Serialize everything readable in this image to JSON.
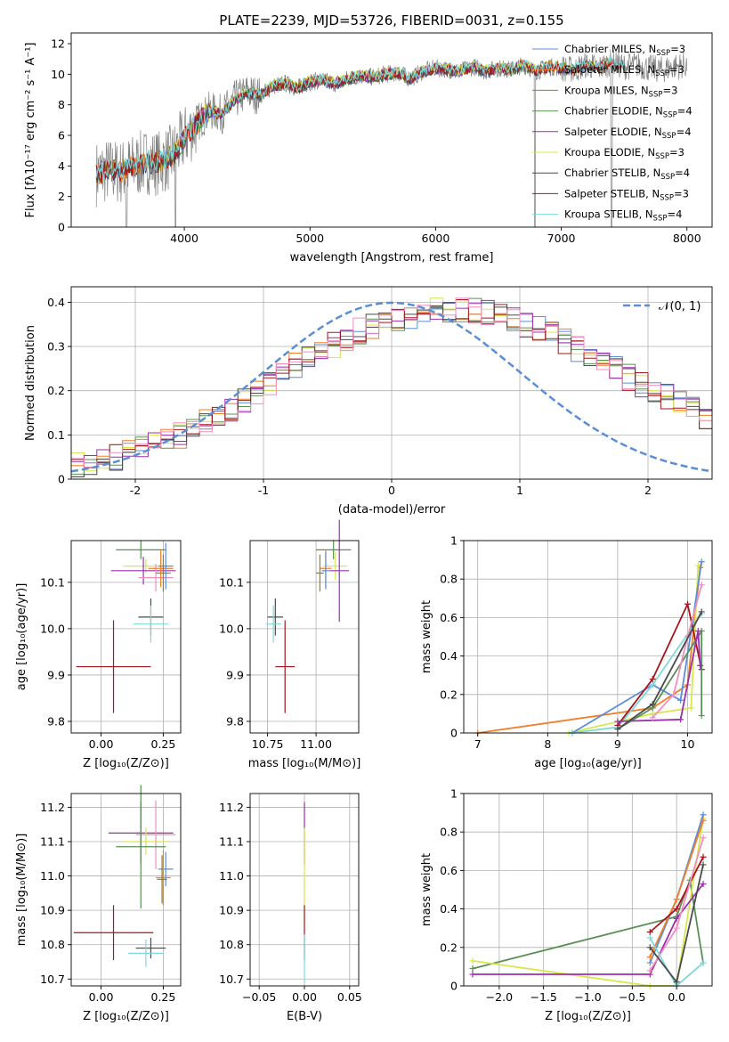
{
  "figure": {
    "title": "PLATE=2239, MJD=53726, FIBERID=0031, z=0.155"
  },
  "colors": {
    "chabrier_miles": "#5b8ed6",
    "salpeter_miles": "#f07f2a",
    "kroupa_miles": "#9a7f18",
    "chabrier_elodie": "#5a8f55",
    "salpeter_elodie": "#9b2fae",
    "kroupa_elodie": "#d6e84a",
    "chabrier_stelib": "#4a4a4a",
    "salpeter_stelib": "#a6161d",
    "kroupa_stelib": "#7fd8d8",
    "observed": "#808080",
    "pink": "#f08fbf",
    "normal_curve": "#5b8ed6"
  },
  "chart_data": [
    {
      "id": "spectrum",
      "type": "line",
      "title": "PLATE=2239, MJD=53726, FIBERID=0031, z=0.155",
      "xlabel": "wavelength [Angstrom, rest frame]",
      "ylabel": "Flux [fλ10⁻¹⁷ erg cm⁻² s⁻¹ A⁻¹]",
      "xlim": [
        3100,
        8200
      ],
      "ylim": [
        0,
        12.7
      ],
      "xticks": [
        4000,
        5000,
        6000,
        7000,
        8000
      ],
      "yticks": [
        0,
        2,
        4,
        6,
        8,
        10,
        12
      ],
      "grid": false,
      "legend_position": "top-right",
      "legend": [
        {
          "name": "Chabrier MILES, N",
          "sub": "SSP",
          "suffix": "=3",
          "color_key": "chabrier_miles"
        },
        {
          "name": "Salpeter MILES, N",
          "sub": "SSP",
          "suffix": "=3",
          "color_key": "salpeter_miles"
        },
        {
          "name": "Kroupa MILES, N",
          "sub": "SSP",
          "suffix": "=3",
          "color_key": "kroupa_miles"
        },
        {
          "name": "Chabrier ELODIE, N",
          "sub": "SSP",
          "suffix": "=4",
          "color_key": "chabrier_elodie"
        },
        {
          "name": "Salpeter ELODIE, N",
          "sub": "SSP",
          "suffix": "=4",
          "color_key": "salpeter_elodie"
        },
        {
          "name": "Kroupa ELODIE, N",
          "sub": "SSP",
          "suffix": "=3",
          "color_key": "kroupa_elodie"
        },
        {
          "name": "Chabrier STELIB, N",
          "sub": "SSP",
          "suffix": "=4",
          "color_key": "chabrier_stelib"
        },
        {
          "name": "Salpeter STELIB, N",
          "sub": "SSP",
          "suffix": "=3",
          "color_key": "salpeter_stelib"
        },
        {
          "name": "Kroupa STELIB, N",
          "sub": "SSP",
          "suffix": "=4",
          "color_key": "kroupa_stelib"
        }
      ],
      "continuum": {
        "x": [
          3300,
          3400,
          3500,
          3600,
          3700,
          3800,
          3900,
          4000,
          4100,
          4200,
          4300,
          4400,
          4500,
          4600,
          4700,
          4800,
          4900,
          5000,
          5100,
          5200,
          5300,
          5400,
          5500,
          5600,
          5700,
          5800,
          5900,
          6000,
          6100,
          6200,
          6300,
          6400,
          6500,
          6600,
          6700,
          6800,
          6900,
          7000,
          7100,
          7200,
          7300,
          7400,
          7500,
          7600,
          7700,
          7800,
          7900,
          8000
        ],
        "y": [
          3.5,
          3.7,
          3.6,
          4.0,
          4.3,
          4.2,
          4.6,
          5.8,
          6.8,
          7.6,
          7.4,
          8.3,
          8.8,
          8.6,
          9.2,
          9.4,
          9.1,
          9.5,
          9.6,
          9.4,
          9.7,
          9.9,
          9.8,
          10.0,
          10.1,
          9.7,
          10.2,
          10.4,
          10.3,
          10.2,
          10.5,
          10.2,
          10.4,
          10.3,
          10.6,
          10.2,
          10.5,
          10.4,
          10.3,
          10.6,
          10.4,
          10.8,
          10.5,
          10.6,
          10.4,
          10.3,
          10.5,
          10.6
        ]
      }
    },
    {
      "id": "residual_hist",
      "type": "histogram",
      "xlabel": "(data-model)/error",
      "ylabel": "Normed distribution",
      "xlim": [
        -2.5,
        2.5
      ],
      "ylim": [
        0,
        0.435
      ],
      "xticks": [
        -2,
        -1,
        0,
        1,
        2
      ],
      "yticks": [
        0.0,
        0.1,
        0.2,
        0.3,
        0.4
      ],
      "grid": true,
      "legend_position": "top-right",
      "legend": [
        {
          "name": "𝒩(0, 1)",
          "style": "dashed",
          "color_key": "normal_curve"
        }
      ],
      "bin_width": 0.1,
      "base_density": [
        0.035,
        0.04,
        0.045,
        0.05,
        0.06,
        0.07,
        0.08,
        0.09,
        0.1,
        0.115,
        0.13,
        0.145,
        0.16,
        0.18,
        0.2,
        0.215,
        0.235,
        0.255,
        0.275,
        0.29,
        0.305,
        0.32,
        0.335,
        0.345,
        0.355,
        0.365,
        0.37,
        0.375,
        0.38,
        0.385,
        0.385,
        0.38,
        0.375,
        0.37,
        0.36,
        0.35,
        0.34,
        0.325,
        0.31,
        0.295,
        0.28,
        0.265,
        0.25,
        0.23,
        0.215,
        0.2,
        0.185,
        0.17,
        0.155,
        0.14
      ]
    },
    {
      "id": "z_vs_age",
      "type": "errorbar",
      "xlabel": "Z [log₁₀(Z/Z⊙)]",
      "ylabel": "age  [log₁₀(age/yr)]",
      "xlim": [
        -0.12,
        0.32
      ],
      "ylim": [
        9.775,
        10.19
      ],
      "xticks": [
        0.0,
        0.25
      ],
      "xticklabels": [
        "0.00",
        "0.25"
      ],
      "yticks": [
        9.8,
        9.9,
        10.0,
        10.1
      ],
      "yticklabels": [
        "9.8",
        "9.9",
        "10.0",
        "10.1"
      ],
      "grid": true,
      "points": [
        {
          "color_key": "chabrier_elodie",
          "x": 0.16,
          "xerr": 0.1,
          "y": 10.17,
          "yerr": 0.02
        },
        {
          "color_key": "kroupa_elodie",
          "x": 0.18,
          "xerr": 0.09,
          "y": 10.135,
          "yerr": 0.015
        },
        {
          "color_key": "salpeter_elodie",
          "x": 0.17,
          "xerr": 0.13,
          "y": 10.125,
          "yerr": 0.03
        },
        {
          "color_key": "pink",
          "x": 0.22,
          "xerr": 0.07,
          "y": 10.11,
          "yerr": 0.03
        },
        {
          "color_key": "salpeter_miles",
          "x": 0.24,
          "xerr": 0.05,
          "y": 10.13,
          "yerr": 0.04
        },
        {
          "color_key": "chabrier_miles",
          "x": 0.26,
          "xerr": 0.03,
          "y": 10.135,
          "yerr": 0.05
        },
        {
          "color_key": "kroupa_miles",
          "x": 0.25,
          "xerr": 0.03,
          "y": 10.12,
          "yerr": 0.04
        },
        {
          "color_key": "chabrier_stelib",
          "x": 0.2,
          "xerr": 0.05,
          "y": 10.025,
          "yerr": 0.04
        },
        {
          "color_key": "kroupa_stelib",
          "x": 0.2,
          "xerr": 0.07,
          "y": 10.01,
          "yerr": 0.04
        },
        {
          "color_key": "salpeter_stelib",
          "x": 0.05,
          "xerr": 0.15,
          "y": 9.918,
          "yerr": 0.1
        }
      ]
    },
    {
      "id": "mass_vs_age",
      "type": "errorbar",
      "xlabel": "mass [log₁₀(M/M⊙)]",
      "ylabel": "",
      "xlim": [
        10.66,
        11.22
      ],
      "ylim": [
        9.775,
        10.19
      ],
      "xticks": [
        10.75,
        11.0
      ],
      "xticklabels": [
        "10.75",
        "11.00"
      ],
      "yticks": [
        9.8,
        9.9,
        10.0,
        10.1
      ],
      "yticklabels": [
        "9.8",
        "9.9",
        "10.0",
        "10.1"
      ],
      "grid": true,
      "points": [
        {
          "color_key": "chabrier_elodie",
          "x": 11.09,
          "xerr": 0.09,
          "y": 10.17,
          "yerr": 0.02
        },
        {
          "color_key": "kroupa_elodie",
          "x": 11.1,
          "xerr": 0.06,
          "y": 10.135,
          "yerr": 0.03
        },
        {
          "color_key": "salpeter_elodie",
          "x": 11.12,
          "xerr": 0.05,
          "y": 10.125,
          "yerr": 0.11
        },
        {
          "color_key": "salpeter_miles",
          "x": 11.05,
          "xerr": 0.03,
          "y": 10.13,
          "yerr": 0.04
        },
        {
          "color_key": "chabrier_miles",
          "x": 11.05,
          "xerr": 0.02,
          "y": 10.125,
          "yerr": 0.04
        },
        {
          "color_key": "kroupa_miles",
          "x": 11.02,
          "xerr": 0.02,
          "y": 10.12,
          "yerr": 0.04
        },
        {
          "color_key": "chabrier_stelib",
          "x": 10.79,
          "xerr": 0.04,
          "y": 10.025,
          "yerr": 0.04
        },
        {
          "color_key": "kroupa_stelib",
          "x": 10.78,
          "xerr": 0.04,
          "y": 10.01,
          "yerr": 0.04
        },
        {
          "color_key": "salpeter_stelib",
          "x": 10.84,
          "xerr": 0.05,
          "y": 9.918,
          "yerr": 0.1
        }
      ]
    },
    {
      "id": "age_weights",
      "type": "line",
      "xlabel": "age  [log₁₀(age/yr)]",
      "ylabel": "mass weight",
      "xlim": [
        6.8,
        10.35
      ],
      "ylim": [
        0,
        1.0
      ],
      "xticks": [
        7,
        8,
        9,
        10
      ],
      "xticklabels": [
        "7",
        "8",
        "9",
        "10"
      ],
      "yticks": [
        0.0,
        0.2,
        0.4,
        0.6,
        0.8,
        1.0
      ],
      "grid": true,
      "series": [
        {
          "color_key": "salpeter_miles",
          "x": [
            7.0,
            9.5,
            10.0,
            10.18
          ],
          "y": [
            0.0,
            0.13,
            0.25,
            0.86
          ]
        },
        {
          "color_key": "kroupa_elodie",
          "x": [
            8.3,
            9.5,
            10.05,
            10.15
          ],
          "y": [
            0.0,
            0.1,
            0.13,
            0.87
          ]
        },
        {
          "color_key": "chabrier_miles",
          "x": [
            8.35,
            9.5,
            9.9,
            10.2
          ],
          "y": [
            0.0,
            0.25,
            0.17,
            0.89
          ]
        },
        {
          "color_key": "kroupa_stelib",
          "x": [
            8.35,
            9.0,
            9.5,
            10.2
          ],
          "y": [
            0.0,
            0.03,
            0.25,
            0.62
          ]
        },
        {
          "color_key": "salpeter_stelib",
          "x": [
            9.0,
            9.5,
            10.0,
            10.2
          ],
          "y": [
            0.04,
            0.28,
            0.67,
            0.33
          ]
        },
        {
          "color_key": "chabrier_elodie",
          "x": [
            9.0,
            9.5,
            10.2,
            10.2
          ],
          "y": [
            0.02,
            0.13,
            0.53,
            0.09
          ]
        },
        {
          "color_key": "salpeter_elodie",
          "x": [
            9.0,
            9.9,
            10.15,
            10.18
          ],
          "y": [
            0.06,
            0.07,
            0.53,
            0.35
          ]
        },
        {
          "color_key": "pink",
          "x": [
            9.5,
            9.8,
            10.0,
            10.2
          ],
          "y": [
            0.08,
            0.2,
            0.5,
            0.77
          ]
        },
        {
          "color_key": "chabrier_stelib",
          "x": [
            9.0,
            9.5,
            10.2
          ],
          "y": [
            0.02,
            0.15,
            0.63
          ]
        }
      ]
    },
    {
      "id": "z_vs_mass",
      "type": "errorbar",
      "xlabel": "Z [log₁₀(Z/Z⊙)]",
      "ylabel": "mass [log₁₀(M/M⊙)]",
      "xlim": [
        -0.12,
        0.32
      ],
      "ylim": [
        10.68,
        11.24
      ],
      "xticks": [
        0.0,
        0.25
      ],
      "xticklabels": [
        "0.00",
        "0.25"
      ],
      "yticks": [
        10.7,
        10.8,
        10.9,
        11.0,
        11.1,
        11.2
      ],
      "yticklabels": [
        "10.7",
        "10.8",
        "10.9",
        "11.0",
        "11.1",
        "11.2"
      ],
      "grid": true,
      "points": [
        {
          "color_key": "salpeter_elodie",
          "x": 0.16,
          "xerr": 0.13,
          "y": 11.125,
          "yerr": 0.09
        },
        {
          "color_key": "pink",
          "x": 0.22,
          "xerr": 0.08,
          "y": 11.12,
          "yerr": 0.1
        },
        {
          "color_key": "kroupa_elodie",
          "x": 0.18,
          "xerr": 0.09,
          "y": 11.1,
          "yerr": 0.04
        },
        {
          "color_key": "chabrier_elodie",
          "x": 0.16,
          "xerr": 0.1,
          "y": 11.085,
          "yerr": 0.18
        },
        {
          "color_key": "chabrier_miles",
          "x": 0.26,
          "xerr": 0.03,
          "y": 11.02,
          "yerr": 0.05
        },
        {
          "color_key": "salpeter_miles",
          "x": 0.25,
          "xerr": 0.03,
          "y": 10.995,
          "yerr": 0.08
        },
        {
          "color_key": "kroupa_miles",
          "x": 0.245,
          "xerr": 0.02,
          "y": 10.99,
          "yerr": 0.07
        },
        {
          "color_key": "salpeter_stelib",
          "x": 0.05,
          "xerr": 0.16,
          "y": 10.835,
          "yerr": 0.08
        },
        {
          "color_key": "chabrier_stelib",
          "x": 0.2,
          "xerr": 0.06,
          "y": 10.79,
          "yerr": 0.03
        },
        {
          "color_key": "kroupa_stelib",
          "x": 0.18,
          "xerr": 0.07,
          "y": 10.775,
          "yerr": 0.04
        }
      ]
    },
    {
      "id": "ebv_vs_mass",
      "type": "errorbar",
      "xlabel": "E(B-V)",
      "ylabel": "",
      "xlim": [
        -0.06,
        0.06
      ],
      "ylim": [
        10.68,
        11.24
      ],
      "xticks": [
        -0.05,
        0.0,
        0.05
      ],
      "xticklabels": [
        "−0.05",
        "0.00",
        "0.05"
      ],
      "yticks": [
        10.7,
        10.8,
        10.9,
        11.0,
        11.1,
        11.2
      ],
      "yticklabels": [
        "10.7",
        "10.8",
        "10.9",
        "11.0",
        "11.1",
        "11.2"
      ],
      "grid": true,
      "points": [
        {
          "color_key": "salpeter_elodie",
          "x": 0.0,
          "xerr": 0.0,
          "y": 11.125,
          "yerr": 0.09
        },
        {
          "color_key": "kroupa_elodie",
          "x": 0.0,
          "xerr": 0.0,
          "y": 11.0,
          "yerr": 0.14
        },
        {
          "color_key": "salpeter_stelib",
          "x": 0.0,
          "xerr": 0.0,
          "y": 10.835,
          "yerr": 0.08
        },
        {
          "color_key": "kroupa_stelib",
          "x": 0.0,
          "xerr": 0.0,
          "y": 10.76,
          "yerr": 0.07
        }
      ]
    },
    {
      "id": "z_weights",
      "type": "line",
      "xlabel": "Z [log₁₀(Z/Z⊙)]",
      "ylabel": "mass weight",
      "xlim": [
        -2.4,
        0.4
      ],
      "ylim": [
        0,
        1.0
      ],
      "xticks": [
        -2.0,
        -1.5,
        -1.0,
        -0.5,
        0.0
      ],
      "xticklabels": [
        "−2.0",
        "−1.5",
        "−1.0",
        "−0.5",
        "0.0"
      ],
      "yticks": [
        0.0,
        0.2,
        0.4,
        0.6,
        0.8,
        1.0
      ],
      "grid": true,
      "series": [
        {
          "color_key": "chabrier_elodie",
          "x": [
            -2.3,
            0.0,
            0.15,
            0.3
          ],
          "y": [
            0.09,
            0.36,
            0.55,
            0.12
          ]
        },
        {
          "color_key": "kroupa_elodie",
          "x": [
            -2.3,
            -0.3,
            0.0,
            0.3
          ],
          "y": [
            0.13,
            0.0,
            0.0,
            0.87
          ]
        },
        {
          "color_key": "salpeter_elodie",
          "x": [
            -2.3,
            -0.3,
            0.0,
            0.3
          ],
          "y": [
            0.06,
            0.06,
            0.35,
            0.53
          ]
        },
        {
          "color_key": "chabrier_miles",
          "x": [
            -0.3,
            0.0,
            0.3
          ],
          "y": [
            0.12,
            0.45,
            0.89
          ]
        },
        {
          "color_key": "salpeter_miles",
          "x": [
            -0.3,
            0.0,
            0.3
          ],
          "y": [
            0.15,
            0.45,
            0.86
          ]
        },
        {
          "color_key": "salpeter_stelib",
          "x": [
            -0.3,
            0.0,
            0.3
          ],
          "y": [
            0.28,
            0.4,
            0.67
          ]
        },
        {
          "color_key": "pink",
          "x": [
            -0.3,
            0.0,
            0.3
          ],
          "y": [
            0.08,
            0.3,
            0.77
          ]
        },
        {
          "color_key": "kroupa_stelib",
          "x": [
            -0.3,
            0.0,
            0.3
          ],
          "y": [
            0.25,
            0.0,
            0.12
          ]
        },
        {
          "color_key": "chabrier_stelib",
          "x": [
            -0.3,
            0.0,
            0.3
          ],
          "y": [
            0.2,
            0.02,
            0.63
          ]
        }
      ]
    }
  ]
}
